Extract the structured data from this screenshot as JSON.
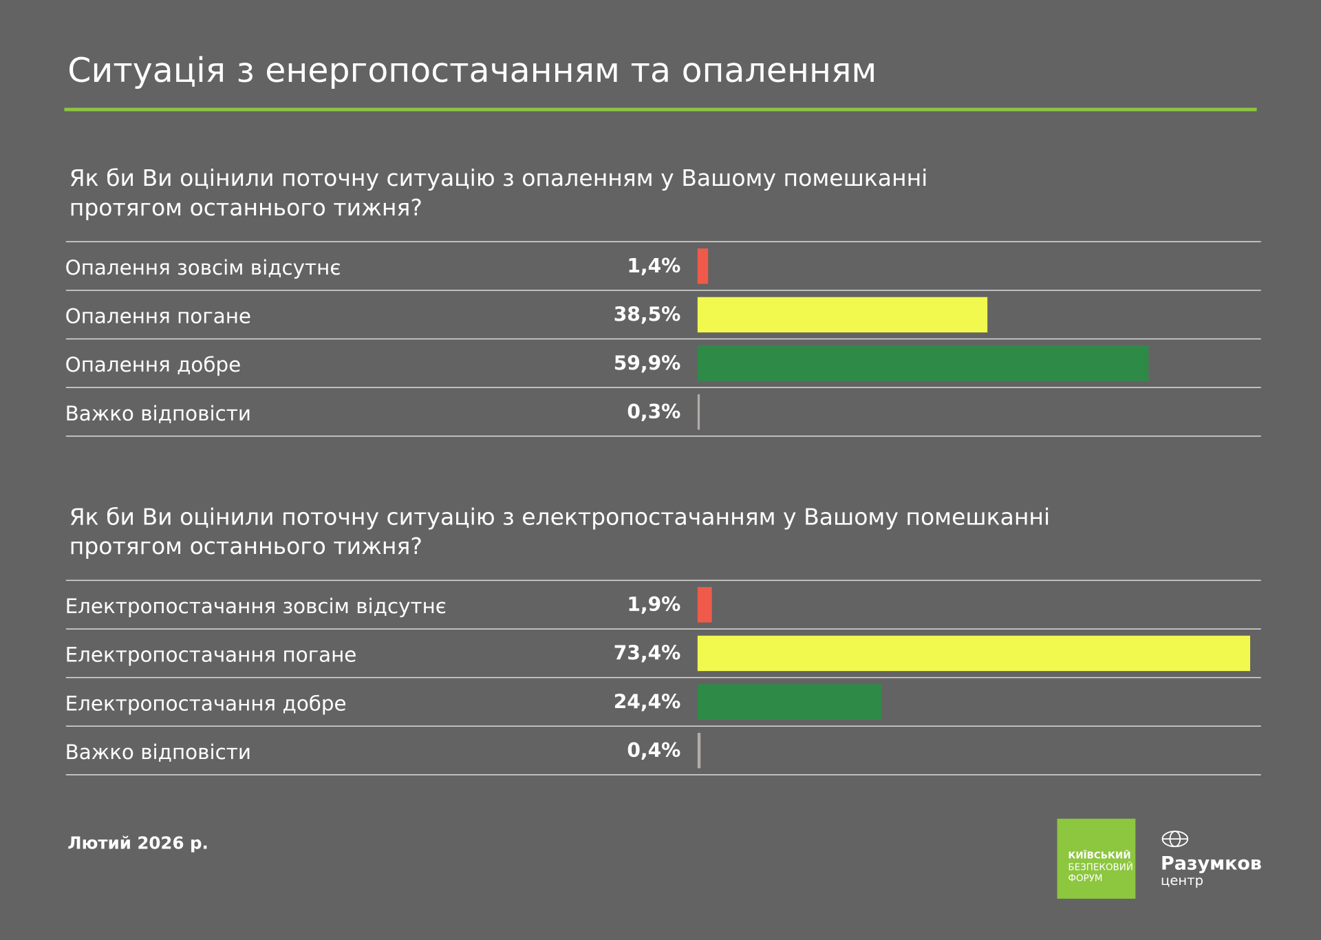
{
  "page": {
    "title": "Ситуація з енергопостачанням та опаленням",
    "date": "Лютий 2026 р.",
    "logo_left": [
      "КИЇВСЬКИЙ",
      "БЕЗПЕКОВИЙ",
      "ФОРУМ"
    ],
    "logo_right": [
      "Разумков",
      "центр"
    ]
  },
  "chart_data": [
    {
      "type": "hbar",
      "title": [
        "Як би Ви оцінили поточну ситуацію з опаленням у Вашому помешканні",
        "протягом останнього тижня?"
      ],
      "categories": [
        "Опалення зовсім відсутнє",
        "Опалення погане",
        "Опалення добре",
        "Важко відповісти"
      ],
      "values": [
        1.4,
        38.5,
        59.9,
        0.3
      ],
      "value_labels": [
        "1,4%",
        "38,5%",
        "59,9%",
        "0,3%"
      ],
      "colors": [
        "#f05a4a",
        "#f2f94e",
        "#2e8b47",
        "#b3aca8"
      ]
    },
    {
      "type": "hbar",
      "title": [
        "Як би Ви оцінили поточну ситуацію з електропостачанням у Вашому помешканні",
        "протягом останнього тижня?"
      ],
      "categories": [
        "Електропостачання зовсім відсутнє",
        "Електропостачання погане",
        "Електропостачання добре",
        "Важко відповісти"
      ],
      "values": [
        1.9,
        73.4,
        24.4,
        0.4
      ],
      "value_labels": [
        "1,9%",
        "73,4%",
        "24,4%",
        "0,4%"
      ],
      "colors": [
        "#f05a4a",
        "#f2f94e",
        "#2e8b47",
        "#b3aca8"
      ]
    }
  ]
}
